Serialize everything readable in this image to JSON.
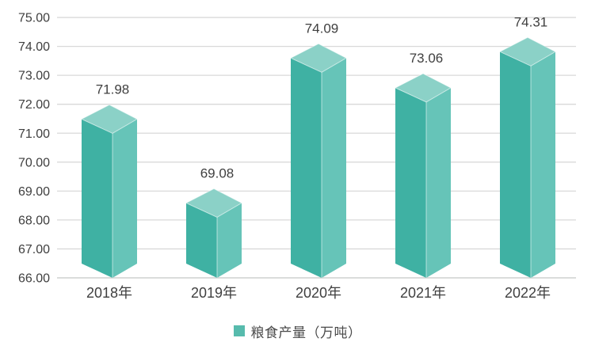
{
  "chart_data": {
    "type": "bar",
    "variant": "3d-column",
    "title": "",
    "categories": [
      "2018年",
      "2019年",
      "2020年",
      "2021年",
      "2022年"
    ],
    "series": [
      {
        "name": "粮食产量（万吨）",
        "values": [
          71.98,
          69.08,
          74.09,
          73.06,
          74.31
        ]
      }
    ],
    "data_labels": [
      "71.98",
      "69.08",
      "74.09",
      "73.06",
      "74.31"
    ],
    "xlabel": "",
    "ylabel": "",
    "ylim": [
      66,
      75
    ],
    "ytick_step": 1,
    "ytick_labels": [
      "75.00",
      "74.00",
      "73.00",
      "72.00",
      "71.00",
      "70.00",
      "69.00",
      "68.00",
      "67.00",
      "66.00"
    ],
    "grid": true,
    "legend_position": "bottom",
    "colors": {
      "bar_face_left": "#3fb1a3",
      "bar_face_right": "#66c4b8",
      "bar_face_top": "#8bd1c7",
      "bar_edge_highlight": "rgba(255,255,255,0.55)",
      "legend_marker": "#57bbad",
      "gridline": "#d9d9d9",
      "axis_line": "#c3c6c5",
      "label_text": "#3f3f3f"
    }
  }
}
